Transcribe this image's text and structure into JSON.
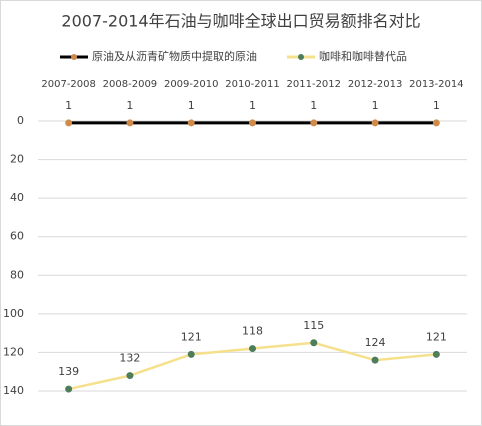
{
  "chart_data": {
    "type": "line",
    "title": "2007-2014年石油与咖啡全球出口贸易额排名对比",
    "categories": [
      "2007-2008",
      "2008-2009",
      "2009-2010",
      "2010-2011",
      "2011-2012",
      "2012-2013",
      "2013-2014"
    ],
    "series": [
      {
        "name": "原油及从沥青矿物质中提取的原油",
        "color": "#000000",
        "marker_color": "#d08a4a",
        "values": [
          1,
          1,
          1,
          1,
          1,
          1,
          1
        ]
      },
      {
        "name": "咖啡和咖啡替代品",
        "color": "#f5e08c",
        "marker_color": "#4e7d5b",
        "values": [
          139,
          132,
          121,
          118,
          115,
          124,
          121
        ]
      }
    ],
    "ylim": [
      0,
      140
    ],
    "yticks": [
      0,
      20,
      40,
      60,
      80,
      100,
      120,
      140
    ],
    "y_reversed": true,
    "grid": true,
    "legend": "top"
  }
}
